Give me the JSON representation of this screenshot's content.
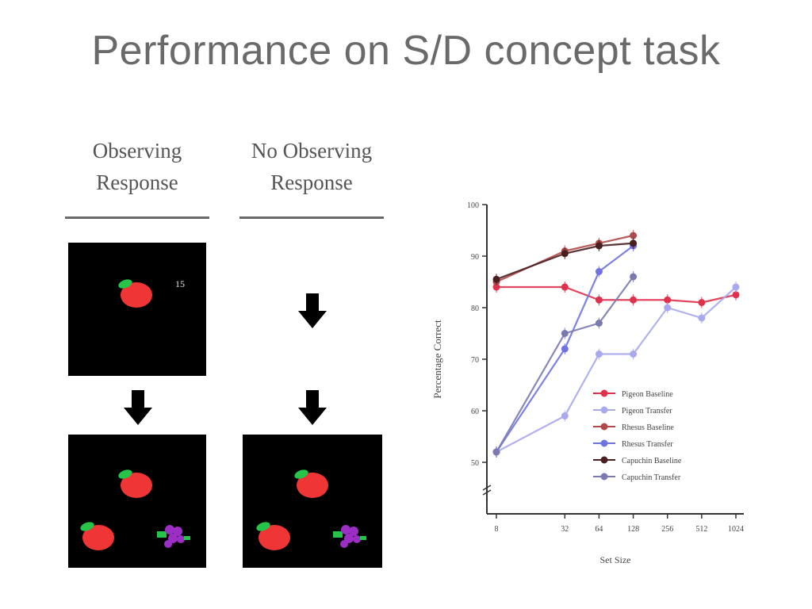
{
  "slide": {
    "title": "Performance on S/D concept task"
  },
  "diagram": {
    "observing_header": [
      "Observing",
      "Response"
    ],
    "no_observing_header": [
      "No Observing",
      "Response"
    ],
    "peck_count_label": "15"
  },
  "chart_data": {
    "type": "line",
    "xlabel": "Set Size",
    "ylabel": "Percentage Correct",
    "x_scale": "log2",
    "x_ticks": [
      "8",
      "32",
      "64",
      "128",
      "256",
      "512",
      "1024"
    ],
    "ylim": [
      40,
      100
    ],
    "y_ticks": [
      40,
      50,
      60,
      70,
      80,
      90,
      100
    ],
    "y_tick_labels": [
      "",
      "50",
      "60",
      "70",
      "80",
      "90",
      "100"
    ],
    "grid": false,
    "legend_position": "lower-right",
    "series": [
      {
        "name": "Pigeon Baseline",
        "color": "#e0314c",
        "marker": "circle",
        "x": [
          8,
          32,
          64,
          128,
          256,
          512,
          1024
        ],
        "y": [
          84,
          84,
          81.5,
          81.5,
          81.5,
          81,
          82.5
        ]
      },
      {
        "name": "Pigeon Transfer",
        "color": "#a9a9ee",
        "marker": "circle",
        "x": [
          8,
          32,
          64,
          128,
          256,
          512,
          1024
        ],
        "y": [
          52,
          59,
          71,
          71,
          80,
          78,
          84
        ]
      },
      {
        "name": "Rhesus Baseline",
        "color": "#b04a4a",
        "marker": "circle",
        "x": [
          8,
          32,
          64,
          128
        ],
        "y": [
          85,
          91,
          92.5,
          94
        ]
      },
      {
        "name": "Rhesus Transfer",
        "color": "#6f73e0",
        "marker": "circle",
        "x": [
          8,
          32,
          64,
          128
        ],
        "y": [
          52,
          72,
          87,
          92
        ]
      },
      {
        "name": "Capuchin Baseline",
        "color": "#4a1f1f",
        "marker": "circle",
        "x": [
          8,
          32,
          64,
          128
        ],
        "y": [
          85.5,
          90.5,
          92,
          92.5
        ]
      },
      {
        "name": "Capuchin Transfer",
        "color": "#7a7ab0",
        "marker": "circle",
        "x": [
          8,
          32,
          64,
          128
        ],
        "y": [
          52,
          75,
          77,
          86
        ]
      }
    ]
  }
}
